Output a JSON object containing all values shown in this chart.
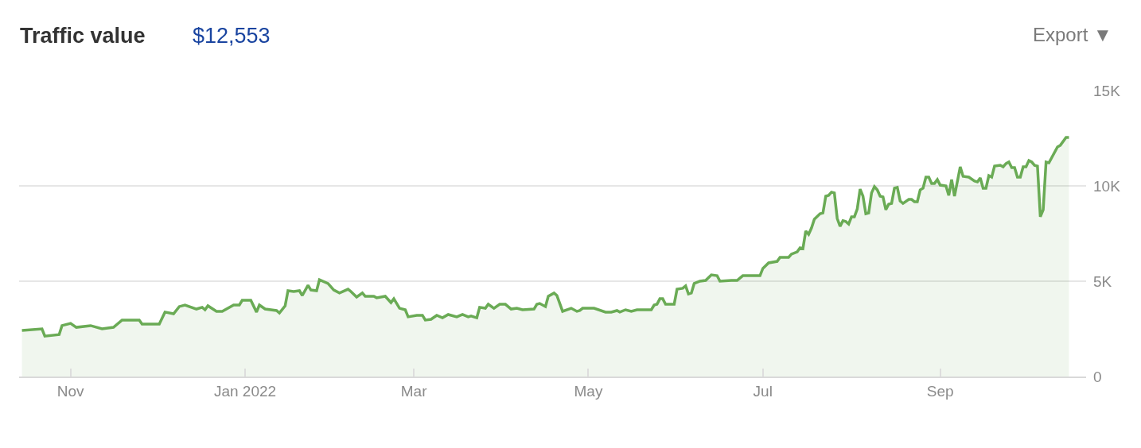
{
  "chart_data": {
    "type": "area",
    "title": "Traffic value",
    "subtitle": "$12,553",
    "annotations": [
      "Export ▼"
    ],
    "x": [
      "2021-10-15",
      "2021-10-22",
      "2021-10-23",
      "2021-10-28",
      "2021-10-29",
      "2021-11-01",
      "2021-11-03",
      "2021-11-08",
      "2021-11-12",
      "2021-11-16",
      "2021-11-19",
      "2021-11-25",
      "2021-11-26",
      "2021-12-02",
      "2021-12-04",
      "2021-12-07",
      "2021-12-09",
      "2021-12-11",
      "2021-12-15",
      "2021-12-17",
      "2021-12-18",
      "2021-12-19",
      "2021-12-22",
      "2021-12-24",
      "2021-12-28",
      "2021-12-30",
      "2021-12-31",
      "2022-01-03",
      "2022-01-05",
      "2022-01-06",
      "2022-01-08",
      "2022-01-12",
      "2022-01-13",
      "2022-01-15",
      "2022-01-16",
      "2022-01-18",
      "2022-01-20",
      "2022-01-21",
      "2022-01-23",
      "2022-01-24",
      "2022-01-26",
      "2022-01-27",
      "2022-01-30",
      "2022-02-01",
      "2022-02-03",
      "2022-02-06",
      "2022-02-07",
      "2022-02-09",
      "2022-02-11",
      "2022-02-12",
      "2022-02-15",
      "2022-02-16",
      "2022-02-19",
      "2022-02-21",
      "2022-02-22",
      "2022-02-24",
      "2022-02-26",
      "2022-02-27",
      "2022-03-02",
      "2022-03-04",
      "2022-03-05",
      "2022-03-07",
      "2022-03-09",
      "2022-03-11",
      "2022-03-13",
      "2022-03-16",
      "2022-03-18",
      "2022-03-20",
      "2022-03-21",
      "2022-03-23",
      "2022-03-24",
      "2022-03-26",
      "2022-03-27",
      "2022-03-29",
      "2022-03-31",
      "2022-04-02",
      "2022-04-04",
      "2022-04-06",
      "2022-04-08",
      "2022-04-12",
      "2022-04-13",
      "2022-04-14",
      "2022-04-16",
      "2022-04-17",
      "2022-04-19",
      "2022-04-20",
      "2022-04-22",
      "2022-04-25",
      "2022-04-27",
      "2022-04-28",
      "2022-04-29",
      "2022-05-03",
      "2022-05-07",
      "2022-05-09",
      "2022-05-11",
      "2022-05-12",
      "2022-05-14",
      "2022-05-16",
      "2022-05-18",
      "2022-05-23",
      "2022-05-24",
      "2022-05-25",
      "2022-05-26",
      "2022-05-27",
      "2022-05-28",
      "2022-05-31",
      "2022-06-01",
      "2022-06-03",
      "2022-06-04",
      "2022-06-05",
      "2022-06-06",
      "2022-06-07",
      "2022-06-09",
      "2022-06-11",
      "2022-06-13",
      "2022-06-15",
      "2022-06-16",
      "2022-06-20",
      "2022-06-22",
      "2022-06-24",
      "2022-06-26",
      "2022-06-30",
      "2022-07-01",
      "2022-07-03",
      "2022-07-06",
      "2022-07-07",
      "2022-07-10",
      "2022-07-11",
      "2022-07-13",
      "2022-07-14",
      "2022-07-15",
      "2022-07-16",
      "2022-07-17",
      "2022-07-18",
      "2022-07-19",
      "2022-07-21",
      "2022-07-22",
      "2022-07-23",
      "2022-07-24",
      "2022-07-25",
      "2022-07-26",
      "2022-07-27",
      "2022-07-28",
      "2022-07-29",
      "2022-07-30",
      "2022-07-31",
      "2022-08-01",
      "2022-08-02",
      "2022-08-03",
      "2022-08-04",
      "2022-08-05",
      "2022-08-06",
      "2022-08-07",
      "2022-08-08",
      "2022-08-09",
      "2022-08-10",
      "2022-08-11",
      "2022-08-12",
      "2022-08-13",
      "2022-08-14",
      "2022-08-15",
      "2022-08-16",
      "2022-08-17",
      "2022-08-18",
      "2022-08-19",
      "2022-08-21",
      "2022-08-22",
      "2022-08-23",
      "2022-08-24",
      "2022-08-25",
      "2022-08-26",
      "2022-08-27",
      "2022-08-28",
      "2022-08-29",
      "2022-08-30",
      "2022-08-31",
      "2022-09-01",
      "2022-09-03",
      "2022-09-04",
      "2022-09-05",
      "2022-09-06",
      "2022-09-08",
      "2022-09-09",
      "2022-09-11",
      "2022-09-13",
      "2022-09-14",
      "2022-09-15",
      "2022-09-16",
      "2022-09-17",
      "2022-09-18",
      "2022-09-19",
      "2022-09-20",
      "2022-09-22",
      "2022-09-23",
      "2022-09-24",
      "2022-09-25",
      "2022-09-26",
      "2022-09-27",
      "2022-09-28",
      "2022-09-29",
      "2022-09-30",
      "2022-10-01",
      "2022-10-02",
      "2022-10-03",
      "2022-10-04",
      "2022-10-05",
      "2022-10-06",
      "2022-10-07",
      "2022-10-08",
      "2022-10-09",
      "2022-10-12",
      "2022-10-13",
      "2022-10-15",
      "2022-10-16"
    ],
    "series": [
      {
        "color": "#6aab55",
        "values": [
          2420,
          2500,
          2120,
          2200,
          2670,
          2790,
          2580,
          2670,
          2500,
          2580,
          2960,
          2960,
          2750,
          2750,
          3380,
          3290,
          3670,
          3750,
          3540,
          3630,
          3500,
          3710,
          3420,
          3420,
          3750,
          3750,
          4000,
          4000,
          3380,
          3750,
          3540,
          3460,
          3330,
          3710,
          4500,
          4460,
          4500,
          4250,
          4790,
          4540,
          4500,
          5080,
          4880,
          4540,
          4380,
          4580,
          4460,
          4170,
          4380,
          4210,
          4210,
          4130,
          4210,
          3880,
          4080,
          3580,
          3500,
          3130,
          3210,
          3210,
          2960,
          3000,
          3210,
          3080,
          3250,
          3130,
          3250,
          3130,
          3170,
          3080,
          3630,
          3580,
          3790,
          3580,
          3790,
          3790,
          3540,
          3580,
          3500,
          3540,
          3790,
          3830,
          3670,
          4210,
          4380,
          4250,
          3420,
          3580,
          3420,
          3460,
          3580,
          3580,
          3380,
          3380,
          3460,
          3380,
          3500,
          3420,
          3500,
          3500,
          3750,
          3790,
          4080,
          4080,
          3790,
          3790,
          4580,
          4630,
          4750,
          4330,
          4380,
          4880,
          5000,
          5040,
          5330,
          5290,
          5000,
          5040,
          5040,
          5290,
          5290,
          5290,
          5670,
          5960,
          6040,
          6250,
          6250,
          6420,
          6540,
          6750,
          6710,
          7630,
          7460,
          7790,
          8250,
          8540,
          8580,
          9460,
          9500,
          9670,
          9630,
          8290,
          7880,
          8170,
          8130,
          8000,
          8380,
          8380,
          8790,
          9830,
          9460,
          8540,
          8580,
          9630,
          9960,
          9790,
          9460,
          9420,
          8750,
          9040,
          9080,
          9880,
          9920,
          9210,
          9080,
          9290,
          9290,
          9170,
          9170,
          9790,
          9880,
          10460,
          10460,
          10130,
          10130,
          10330,
          10040,
          10000,
          9500,
          10330,
          9460,
          11000,
          10500,
          10460,
          10250,
          10210,
          10420,
          9880,
          9880,
          10540,
          10460,
          11040,
          11080,
          11000,
          11170,
          11250,
          10960,
          10960,
          10460,
          10460,
          11000,
          11000,
          11330,
          11250,
          11080,
          11040,
          8380,
          8750,
          11250,
          11210,
          12040,
          12130,
          12540,
          12540
        ]
      }
    ],
    "xlim": [
      "2021-10-14",
      "2022-10-22"
    ],
    "xticks": [
      {
        "value": "2021-11-01",
        "label": "Nov"
      },
      {
        "value": "2022-01-01",
        "label": "Jan 2022"
      },
      {
        "value": "2022-03-01",
        "label": "Mar"
      },
      {
        "value": "2022-05-01",
        "label": "May"
      },
      {
        "value": "2022-07-01",
        "label": "Jul"
      },
      {
        "value": "2022-09-01",
        "label": "Sep"
      }
    ],
    "ylim": [
      0,
      15000
    ],
    "yticks": [
      {
        "value": 0,
        "label": "0"
      },
      {
        "value": 5000,
        "label": "5K"
      },
      {
        "value": 10000,
        "label": "10K"
      },
      {
        "value": 15000,
        "label": "15K"
      }
    ],
    "grid": "y"
  }
}
